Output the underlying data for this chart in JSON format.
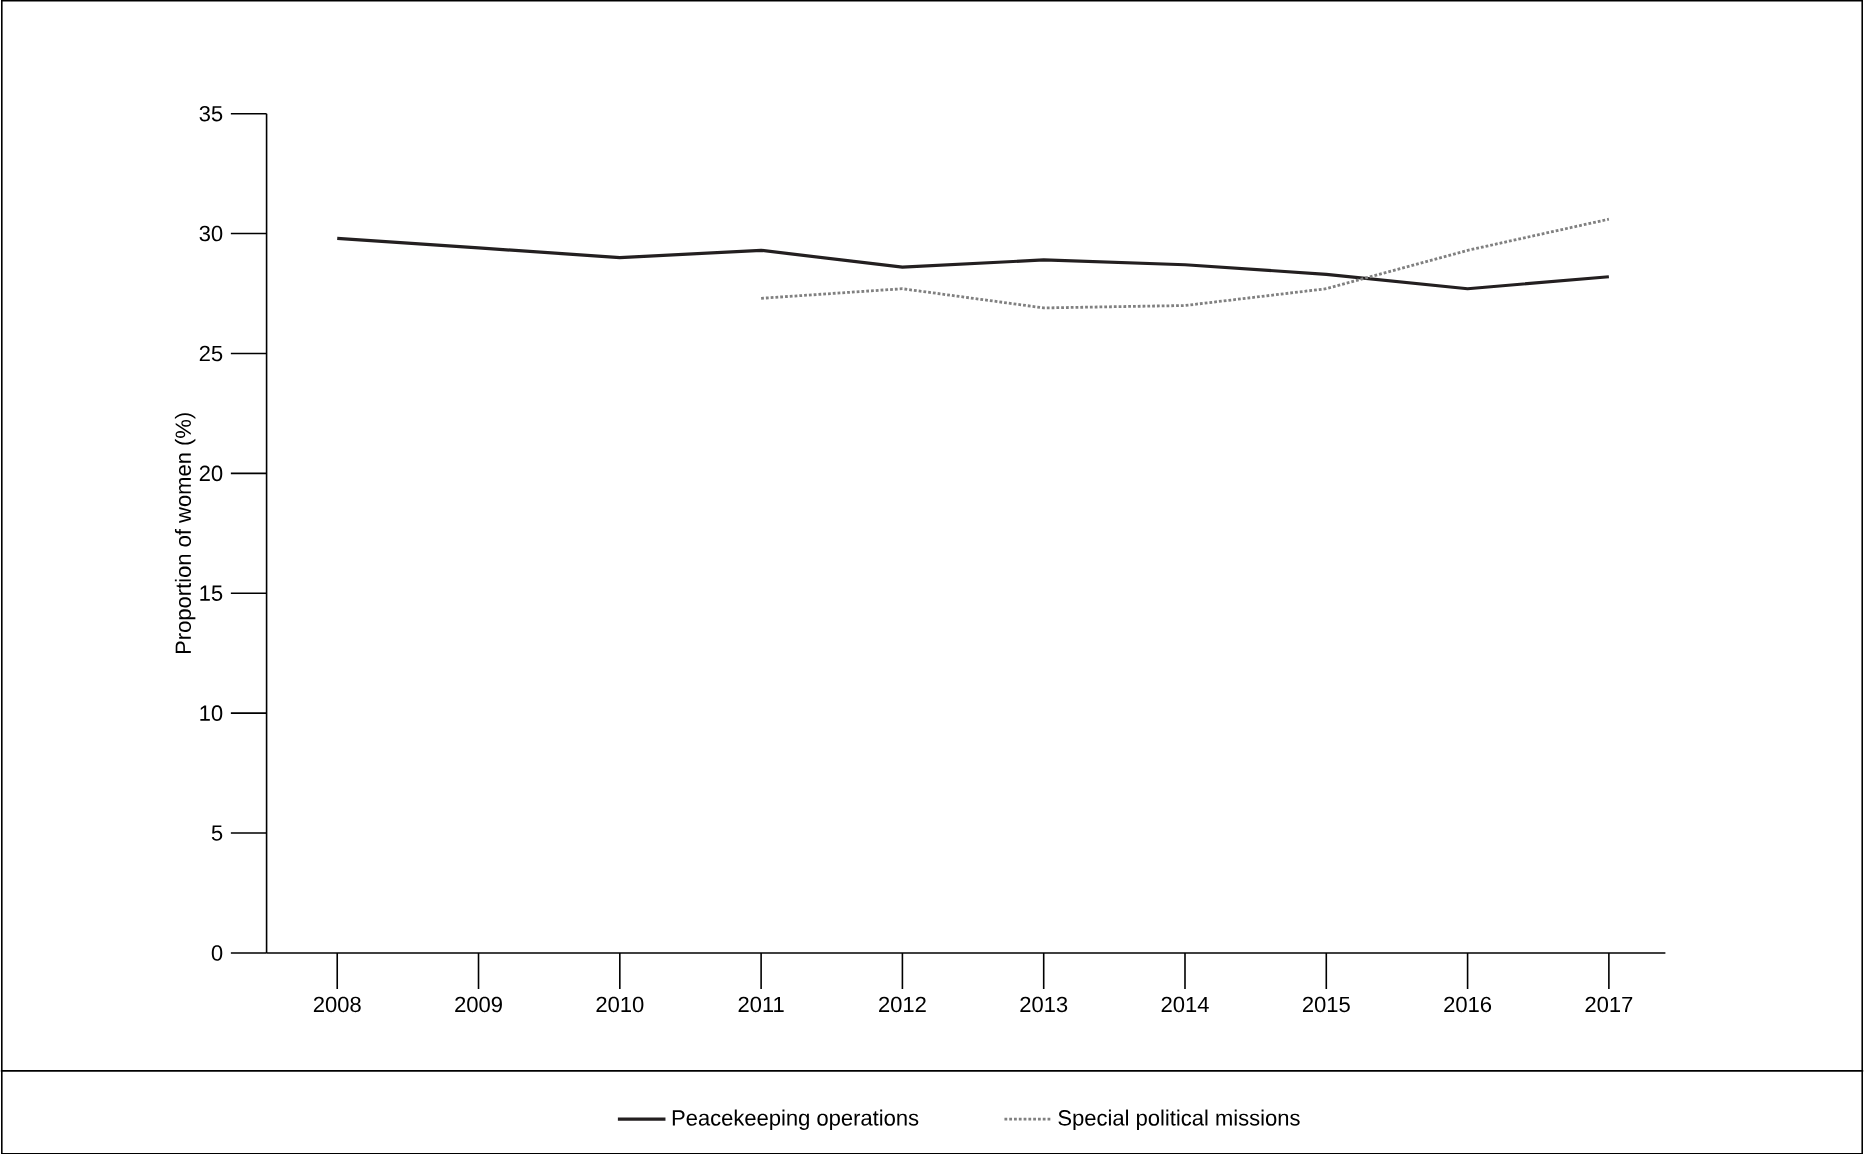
{
  "chart_data": {
    "type": "line",
    "ylabel": "Proportion of women (%)",
    "x": [
      2008,
      2009,
      2010,
      2011,
      2012,
      2013,
      2014,
      2015,
      2016,
      2017
    ],
    "xlim": [
      2007.5,
      2017.4
    ],
    "xticks": [
      2008,
      2009,
      2010,
      2011,
      2012,
      2013,
      2014,
      2015,
      2016,
      2017
    ],
    "ylim": [
      0,
      35
    ],
    "yticks": [
      0,
      5,
      10,
      15,
      20,
      25,
      30,
      35
    ],
    "grid": false,
    "legend": "bottom",
    "marker": "none",
    "series": [
      {
        "name": "Peacekeeping operations",
        "color": "#231f20",
        "line_style": "solid",
        "values": [
          29.8,
          29.4,
          29.0,
          29.3,
          28.6,
          28.9,
          28.7,
          28.3,
          27.7,
          28.2
        ]
      },
      {
        "name": "Special political missions",
        "color": "#808080",
        "line_style": "dotted",
        "values": [
          null,
          null,
          null,
          27.3,
          27.7,
          26.9,
          27.0,
          27.7,
          29.3,
          30.6
        ]
      }
    ]
  }
}
